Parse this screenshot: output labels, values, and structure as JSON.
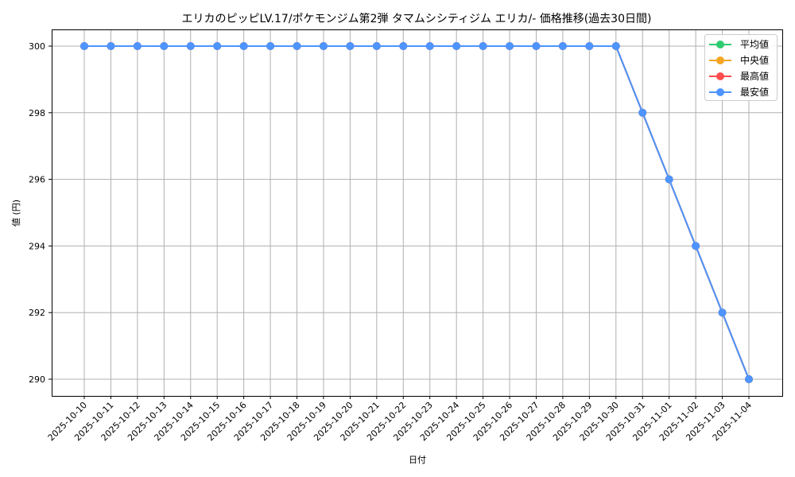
{
  "chart_data": {
    "type": "line",
    "title": "エリカのピッピLV.17/ポケモンジム第2弾 タマムシシティジム エリカ/- 価格推移(過去30日間)",
    "xlabel": "日付",
    "ylabel": "値 (円)",
    "ylim": [
      289.5,
      300.5
    ],
    "yticks": [
      290,
      292,
      294,
      296,
      298,
      300
    ],
    "grid": true,
    "legend_position": "upper right",
    "categories": [
      "2025-10-10",
      "2025-10-11",
      "2025-10-12",
      "2025-10-13",
      "2025-10-14",
      "2025-10-15",
      "2025-10-16",
      "2025-10-17",
      "2025-10-18",
      "2025-10-19",
      "2025-10-20",
      "2025-10-21",
      "2025-10-22",
      "2025-10-23",
      "2025-10-24",
      "2025-10-25",
      "2025-10-26",
      "2025-10-27",
      "2025-10-28",
      "2025-10-29",
      "2025-10-30",
      "2025-10-31",
      "2025-11-01",
      "2025-11-02",
      "2025-11-03",
      "2025-11-04"
    ],
    "series": [
      {
        "name": "平均値",
        "color": "#2ecc71",
        "values": [
          300,
          300,
          300,
          300,
          300,
          300,
          300,
          300,
          300,
          300,
          300,
          300,
          300,
          300,
          300,
          300,
          300,
          300,
          300,
          300,
          300,
          298,
          296,
          294,
          292,
          290
        ]
      },
      {
        "name": "中央値",
        "color": "#f5a623",
        "values": [
          300,
          300,
          300,
          300,
          300,
          300,
          300,
          300,
          300,
          300,
          300,
          300,
          300,
          300,
          300,
          300,
          300,
          300,
          300,
          300,
          300,
          298,
          296,
          294,
          292,
          290
        ]
      },
      {
        "name": "最高値",
        "color": "#ff4d4d",
        "values": [
          300,
          300,
          300,
          300,
          300,
          300,
          300,
          300,
          300,
          300,
          300,
          300,
          300,
          300,
          300,
          300,
          300,
          300,
          300,
          300,
          300,
          298,
          296,
          294,
          292,
          290
        ]
      },
      {
        "name": "最安値",
        "color": "#4d94ff",
        "values": [
          300,
          300,
          300,
          300,
          300,
          300,
          300,
          300,
          300,
          300,
          300,
          300,
          300,
          300,
          300,
          300,
          300,
          300,
          300,
          300,
          300,
          298,
          296,
          294,
          292,
          290
        ]
      }
    ]
  }
}
